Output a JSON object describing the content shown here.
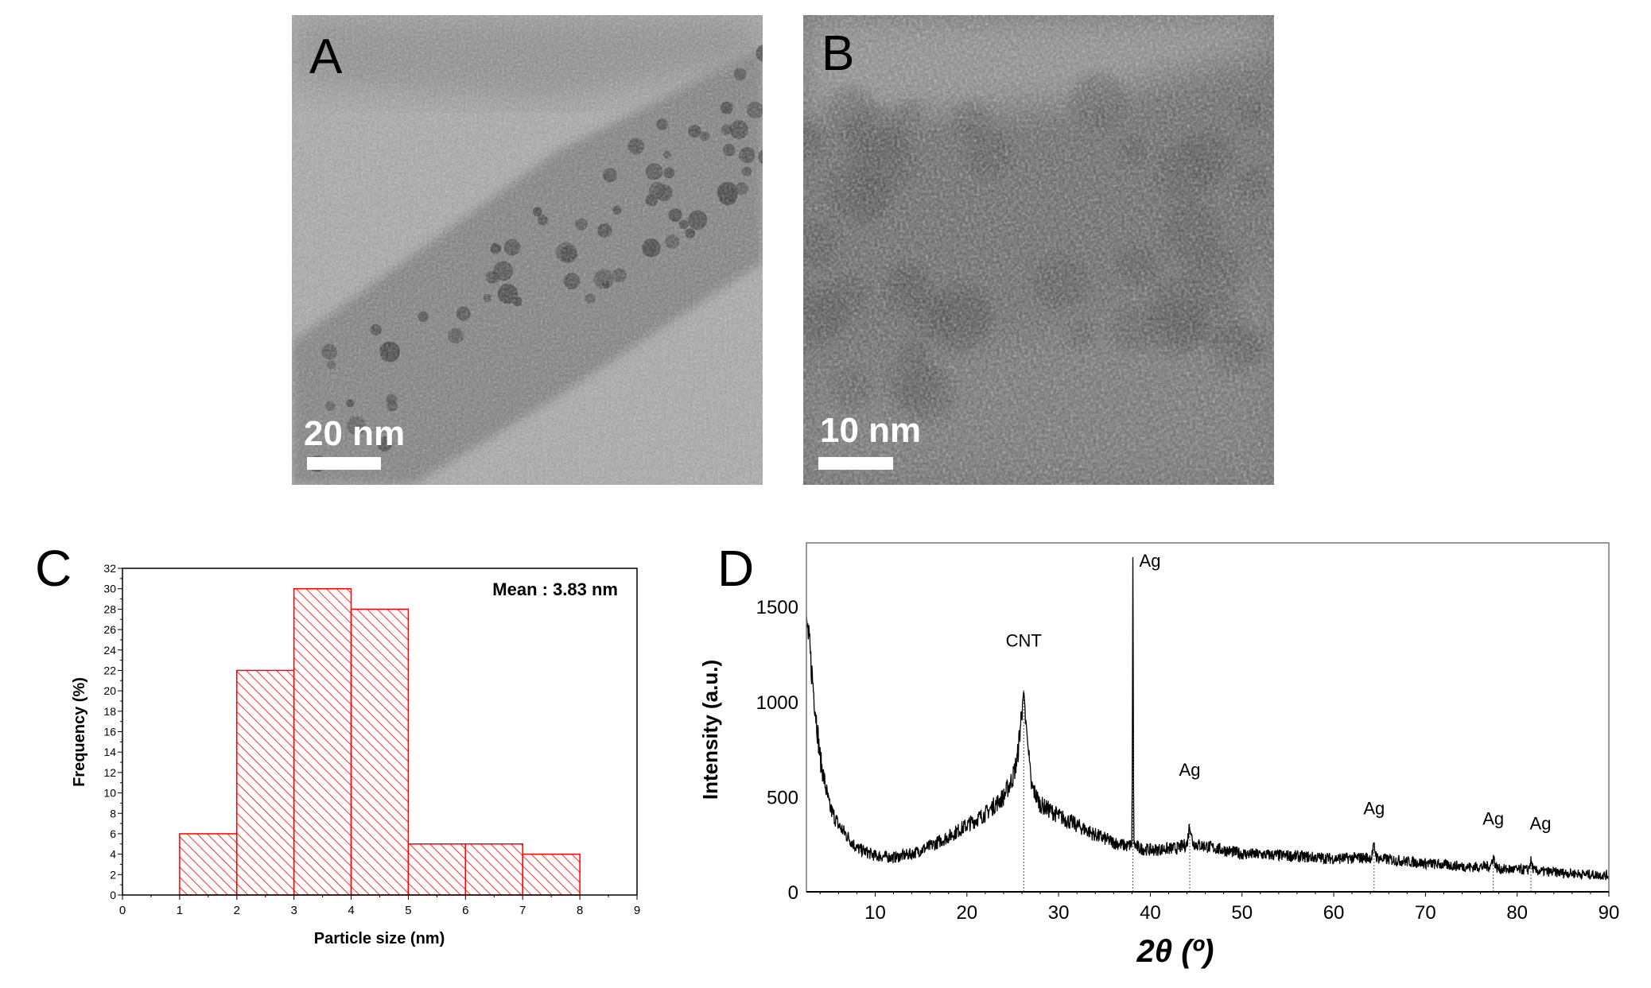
{
  "panels": {
    "a": {
      "label": "A",
      "scale_bar": "20 nm"
    },
    "b": {
      "label": "B",
      "scale_bar": "10 nm"
    },
    "c": {
      "label": "C"
    },
    "d": {
      "label": "D"
    }
  },
  "colors": {
    "histogram": "#ff0000",
    "xrd_line": "#000000"
  },
  "chart_data": [
    {
      "type": "bar",
      "panel": "C",
      "xlabel": "Particle size (nm)",
      "ylabel": "Frequency (%)",
      "annotation": "Mean : 3.83 nm",
      "legend": "top-right",
      "xlim": [
        0,
        9
      ],
      "ylim": [
        0,
        32
      ],
      "xticks": [
        "0",
        "1",
        "2",
        "3",
        "4",
        "5",
        "6",
        "7",
        "8",
        "9"
      ],
      "yticks": [
        "0",
        "2",
        "4",
        "6",
        "8",
        "10",
        "12",
        "14",
        "16",
        "18",
        "20",
        "22",
        "24",
        "26",
        "28",
        "30",
        "32"
      ],
      "bins": [
        [
          1,
          2
        ],
        [
          2,
          3
        ],
        [
          3,
          4
        ],
        [
          4,
          5
        ],
        [
          5,
          6
        ],
        [
          6,
          7
        ],
        [
          7,
          8
        ]
      ],
      "values": [
        6,
        22,
        30,
        28,
        5,
        5,
        4
      ],
      "grid": false
    },
    {
      "type": "line",
      "panel": "D",
      "xlabel": "2θ (º)",
      "ylabel": "Intensity (a.u.)",
      "xlim": [
        2.5,
        90
      ],
      "ylim": [
        0,
        1835
      ],
      "xticks": [
        "10",
        "20",
        "30",
        "40",
        "50",
        "60",
        "70",
        "80",
        "90"
      ],
      "yticks": [
        "0",
        "500",
        "1000",
        "1500"
      ],
      "grid": false,
      "series": [
        {
          "x": [
            2.5,
            4,
            5,
            6,
            8,
            10,
            12,
            14,
            16,
            18,
            20,
            22,
            24,
            25,
            25.5,
            26.2,
            26.6,
            27,
            28,
            30,
            32,
            34,
            36,
            37.5,
            38.0,
            38.1,
            38.2,
            38.7,
            40,
            43,
            44.0,
            44.3,
            44.6,
            45,
            50,
            55,
            60,
            64.1,
            64.4,
            64.7,
            65,
            70,
            75,
            77.1,
            77.4,
            77.7,
            78,
            81.2,
            81.5,
            81.8,
            82,
            85,
            90
          ],
          "y": [
            1450,
            700,
            450,
            350,
            230,
            190,
            180,
            200,
            240,
            290,
            350,
            410,
            500,
            600,
            700,
            1060,
            800,
            560,
            460,
            400,
            350,
            300,
            260,
            240,
            250,
            1760,
            250,
            230,
            220,
            230,
            250,
            360,
            260,
            250,
            200,
            190,
            175,
            180,
            240,
            180,
            175,
            150,
            130,
            135,
            185,
            130,
            120,
            115,
            160,
            115,
            110,
            100,
            85
          ]
        }
      ],
      "peaks": [
        {
          "x": 26.2,
          "label": "CNT"
        },
        {
          "x": 38.1,
          "label": "Ag"
        },
        {
          "x": 44.3,
          "label": "Ag"
        },
        {
          "x": 64.4,
          "label": "Ag"
        },
        {
          "x": 77.4,
          "label": "Ag"
        },
        {
          "x": 81.5,
          "label": "Ag"
        }
      ]
    }
  ]
}
